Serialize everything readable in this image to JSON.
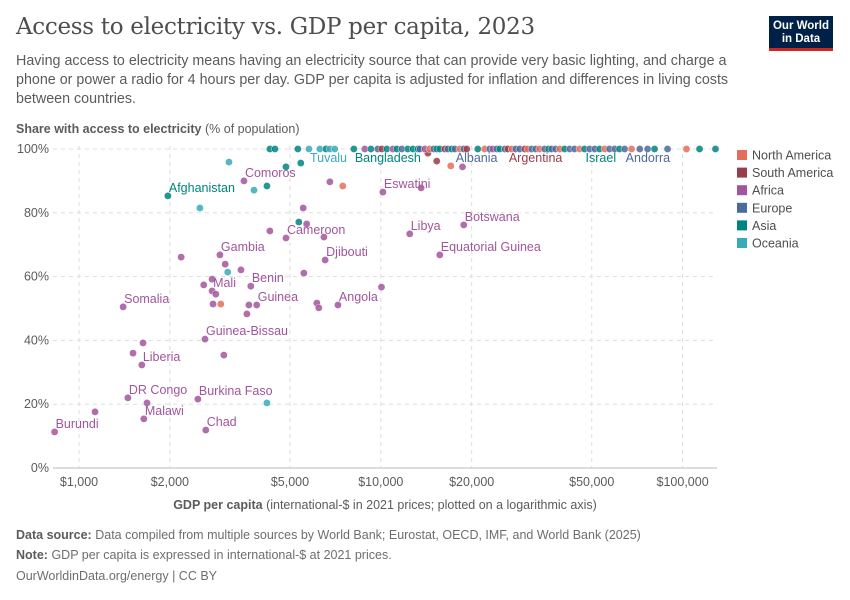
{
  "header": {
    "title": "Access to electricity vs. GDP per capita, 2023",
    "subtitle": "Having access to electricity means having an electricity source that can provide very basic lighting, and charge a phone or power a radio for 4 hours per day. GDP per capita is adjusted for inflation and differences in living costs between countries.",
    "logo_line1": "Our World",
    "logo_line2": "in Data"
  },
  "footer": {
    "source_label": "Data source:",
    "source": "Data compiled from multiple sources by World Bank; Eurostat, OECD, IMF, and World Bank (2025)",
    "note_label": "Note:",
    "note": "GDP per capita is expressed in international-$ at 2021 prices.",
    "credit": "OurWorldinData.org/energy | CC BY"
  },
  "chart_data": {
    "type": "scatter",
    "ylabel_bold": "Share with access to electricity",
    "ylabel_rest": "(% of population)",
    "xlabel_bold": "GDP per capita",
    "xlabel_rest": "(international-$ in 2021 prices; plotted on a logarithmic axis)",
    "xscale": "log",
    "xlim": [
      820,
      130000
    ],
    "ylim": [
      0,
      100
    ],
    "grid": true,
    "legend_placement": "right",
    "xticks": [
      {
        "v": 1000,
        "label": "$1,000"
      },
      {
        "v": 2000,
        "label": "$2,000"
      },
      {
        "v": 5000,
        "label": "$5,000"
      },
      {
        "v": 10000,
        "label": "$10,000"
      },
      {
        "v": 20000,
        "label": "$20,000"
      },
      {
        "v": 50000,
        "label": "$50,000"
      },
      {
        "v": 100000,
        "label": "$100,000"
      }
    ],
    "yticks": [
      {
        "v": 0,
        "label": "0%"
      },
      {
        "v": 20,
        "label": "20%"
      },
      {
        "v": 40,
        "label": "40%"
      },
      {
        "v": 60,
        "label": "60%"
      },
      {
        "v": 80,
        "label": "80%"
      },
      {
        "v": 100,
        "label": "100%"
      }
    ],
    "legend": [
      {
        "name": "North America",
        "color": "#e56e5a"
      },
      {
        "name": "South America",
        "color": "#9a3c4a"
      },
      {
        "name": "Africa",
        "color": "#a2559c"
      },
      {
        "name": "Europe",
        "color": "#4c6a9c"
      },
      {
        "name": "Asia",
        "color": "#00847e"
      },
      {
        "name": "Oceania",
        "color": "#38aaba"
      }
    ],
    "points": [
      {
        "x": 830,
        "y": 11.3,
        "r": "Africa",
        "label": "Burundi"
      },
      {
        "x": 1130,
        "y": 17.6,
        "r": "Africa"
      },
      {
        "x": 1452,
        "y": 22,
        "r": "Africa",
        "label": "DR Congo"
      },
      {
        "x": 1640,
        "y": 15.4,
        "r": "Africa",
        "label": "Malawi"
      },
      {
        "x": 1680,
        "y": 20.4,
        "r": "Africa"
      },
      {
        "x": 1615,
        "y": 32.3,
        "r": "Africa",
        "label": "Liberia"
      },
      {
        "x": 1510,
        "y": 36,
        "r": "Africa"
      },
      {
        "x": 1630,
        "y": 39.2,
        "r": "Africa"
      },
      {
        "x": 1400,
        "y": 50.5,
        "r": "Africa",
        "label": "Somalia"
      },
      {
        "x": 2615,
        "y": 40.4,
        "r": "Africa",
        "label": "Guinea-Bissau"
      },
      {
        "x": 3020,
        "y": 35.4,
        "r": "Africa"
      },
      {
        "x": 2477,
        "y": 21.6,
        "r": "Africa",
        "label": "Burkina Faso"
      },
      {
        "x": 2630,
        "y": 11.9,
        "r": "Africa",
        "label": "Chad"
      },
      {
        "x": 4195,
        "y": 20.4,
        "r": "Oceania"
      },
      {
        "x": 2780,
        "y": 51.4,
        "r": "Africa"
      },
      {
        "x": 2950,
        "y": 51.4,
        "r": "North America"
      },
      {
        "x": 3655,
        "y": 51.1,
        "r": "Africa"
      },
      {
        "x": 3880,
        "y": 51.1,
        "r": "Africa",
        "label": "Guinea"
      },
      {
        "x": 3600,
        "y": 48.3,
        "r": "Africa"
      },
      {
        "x": 6140,
        "y": 51.7,
        "r": "Africa"
      },
      {
        "x": 6230,
        "y": 50.2,
        "r": "Africa"
      },
      {
        "x": 7210,
        "y": 51.1,
        "r": "Africa",
        "label": "Angola"
      },
      {
        "x": 1970,
        "y": 85.3,
        "r": "Asia",
        "label": "Afghanistan"
      },
      {
        "x": 3140,
        "y": 95.9,
        "r": "Oceania"
      },
      {
        "x": 3520,
        "y": 90,
        "r": "Africa",
        "label": "Comoros"
      },
      {
        "x": 3800,
        "y": 87.1,
        "r": "Oceania"
      },
      {
        "x": 4195,
        "y": 88.4,
        "r": "Asia"
      },
      {
        "x": 4850,
        "y": 94.4,
        "r": "Asia"
      },
      {
        "x": 5430,
        "y": 95.6,
        "r": "Asia"
      },
      {
        "x": 2515,
        "y": 81.5,
        "r": "Oceania"
      },
      {
        "x": 5530,
        "y": 81.5,
        "r": "Africa"
      },
      {
        "x": 6780,
        "y": 89.7,
        "r": "Africa"
      },
      {
        "x": 7480,
        "y": 88.4,
        "r": "North America"
      },
      {
        "x": 10160,
        "y": 86.5,
        "r": "Africa",
        "label": "Eswatini"
      },
      {
        "x": 13600,
        "y": 87.8,
        "r": "Africa"
      },
      {
        "x": 5350,
        "y": 77.1,
        "r": "Asia"
      },
      {
        "x": 5680,
        "y": 76.5,
        "r": "Africa"
      },
      {
        "x": 4290,
        "y": 74.3,
        "r": "Africa"
      },
      {
        "x": 4850,
        "y": 72.1,
        "r": "Africa",
        "label": "Cameroon"
      },
      {
        "x": 6480,
        "y": 72.4,
        "r": "Africa"
      },
      {
        "x": 6540,
        "y": 65.2,
        "r": "Africa",
        "label": "Djibouti"
      },
      {
        "x": 2180,
        "y": 66.1,
        "r": "Africa"
      },
      {
        "x": 2930,
        "y": 66.8,
        "r": "Africa",
        "label": "Gambia"
      },
      {
        "x": 3050,
        "y": 63.9,
        "r": "Africa"
      },
      {
        "x": 3110,
        "y": 61.4,
        "r": "Oceania"
      },
      {
        "x": 3440,
        "y": 62.1,
        "r": "Africa"
      },
      {
        "x": 5560,
        "y": 61.1,
        "r": "Africa"
      },
      {
        "x": 2760,
        "y": 59.2,
        "r": "Africa"
      },
      {
        "x": 2590,
        "y": 57.4,
        "r": "Africa"
      },
      {
        "x": 2760,
        "y": 55.5,
        "r": "Africa",
        "label": "Mali"
      },
      {
        "x": 2840,
        "y": 54.5,
        "r": "Africa"
      },
      {
        "x": 3710,
        "y": 57,
        "r": "Africa",
        "label": "Benin"
      },
      {
        "x": 10050,
        "y": 56.7,
        "r": "Africa"
      },
      {
        "x": 12470,
        "y": 73.4,
        "r": "Africa",
        "label": "Libya"
      },
      {
        "x": 18830,
        "y": 76.2,
        "r": "Africa",
        "label": "Botswana"
      },
      {
        "x": 15680,
        "y": 66.8,
        "r": "Africa",
        "label": "Equatorial Guinea"
      },
      {
        "x": 18650,
        "y": 94.4,
        "r": "Africa"
      },
      {
        "x": 17050,
        "y": 94.7,
        "r": "North America"
      },
      {
        "x": 15320,
        "y": 96.2,
        "r": "South America"
      },
      {
        "x": 14320,
        "y": 98.7,
        "r": "South America"
      },
      {
        "x": 4290,
        "y": 100,
        "r": "Asia"
      },
      {
        "x": 4460,
        "y": 100,
        "r": "Asia"
      },
      {
        "x": 5310,
        "y": 100,
        "r": "Asia"
      },
      {
        "x": 5780,
        "y": 100,
        "r": "Oceania",
        "label": "Tuvalu"
      },
      {
        "x": 6280,
        "y": 100,
        "r": "Oceania"
      },
      {
        "x": 6580,
        "y": 100,
        "r": "Asia"
      },
      {
        "x": 6780,
        "y": 100,
        "r": "Oceania"
      },
      {
        "x": 7040,
        "y": 100,
        "r": "Oceania"
      },
      {
        "x": 8140,
        "y": 100,
        "r": "Asia",
        "label": "Bangladesh"
      },
      {
        "x": 8850,
        "y": 100,
        "r": "Africa"
      },
      {
        "x": 9270,
        "y": 100,
        "r": "Asia"
      },
      {
        "x": 9770,
        "y": 100,
        "r": "Europe"
      },
      {
        "x": 10070,
        "y": 100,
        "r": "South America"
      },
      {
        "x": 10470,
        "y": 100,
        "r": "Asia"
      },
      {
        "x": 10960,
        "y": 100,
        "r": "Africa"
      },
      {
        "x": 11300,
        "y": 100,
        "r": "Asia"
      },
      {
        "x": 11740,
        "y": 100,
        "r": "Europe"
      },
      {
        "x": 12280,
        "y": 100,
        "r": "Asia"
      },
      {
        "x": 12770,
        "y": 100,
        "r": "Asia"
      },
      {
        "x": 13270,
        "y": 100,
        "r": "Asia"
      },
      {
        "x": 13460,
        "y": 100,
        "r": "Europe"
      },
      {
        "x": 13990,
        "y": 100,
        "r": "Africa"
      },
      {
        "x": 14520,
        "y": 100,
        "r": "North America"
      },
      {
        "x": 14970,
        "y": 100,
        "r": "Europe"
      },
      {
        "x": 15320,
        "y": 100,
        "r": "Asia"
      },
      {
        "x": 15680,
        "y": 100,
        "r": "Asia"
      },
      {
        "x": 16290,
        "y": 100,
        "r": "South America"
      },
      {
        "x": 16670,
        "y": 100,
        "r": "Europe"
      },
      {
        "x": 17180,
        "y": 100,
        "r": "Asia"
      },
      {
        "x": 17580,
        "y": 100,
        "r": "Europe",
        "label": "Albania"
      },
      {
        "x": 18280,
        "y": 100,
        "r": "North America"
      },
      {
        "x": 18830,
        "y": 100,
        "r": "Europe"
      },
      {
        "x": 19270,
        "y": 100,
        "r": "South America"
      },
      {
        "x": 20960,
        "y": 100,
        "r": "Asia"
      },
      {
        "x": 22090,
        "y": 100,
        "r": "North America"
      },
      {
        "x": 22960,
        "y": 100,
        "r": "Europe"
      },
      {
        "x": 23500,
        "y": 100,
        "r": "Africa"
      },
      {
        "x": 24210,
        "y": 100,
        "r": "Europe"
      },
      {
        "x": 24770,
        "y": 100,
        "r": "Asia"
      },
      {
        "x": 25760,
        "y": 100,
        "r": "Europe"
      },
      {
        "x": 26360,
        "y": 100,
        "r": "South America",
        "label": "Argentina"
      },
      {
        "x": 27160,
        "y": 100,
        "r": "North America"
      },
      {
        "x": 27990,
        "y": 100,
        "r": "Europe"
      },
      {
        "x": 28840,
        "y": 100,
        "r": "Europe"
      },
      {
        "x": 29990,
        "y": 100,
        "r": "South America"
      },
      {
        "x": 30690,
        "y": 100,
        "r": "North America"
      },
      {
        "x": 31620,
        "y": 100,
        "r": "Europe"
      },
      {
        "x": 32580,
        "y": 100,
        "r": "Europe"
      },
      {
        "x": 33570,
        "y": 100,
        "r": "North America"
      },
      {
        "x": 34900,
        "y": 100,
        "r": "Europe"
      },
      {
        "x": 35970,
        "y": 100,
        "r": "Asia"
      },
      {
        "x": 36810,
        "y": 100,
        "r": "Europe"
      },
      {
        "x": 37930,
        "y": 100,
        "r": "Europe"
      },
      {
        "x": 39170,
        "y": 100,
        "r": "North America"
      },
      {
        "x": 40640,
        "y": 100,
        "r": "Asia"
      },
      {
        "x": 42270,
        "y": 100,
        "r": "Europe"
      },
      {
        "x": 43850,
        "y": 100,
        "r": "Europe"
      },
      {
        "x": 45600,
        "y": 100,
        "r": "North America"
      },
      {
        "x": 47320,
        "y": 100,
        "r": "Asia",
        "label": "Israel"
      },
      {
        "x": 49200,
        "y": 100,
        "r": "Europe"
      },
      {
        "x": 51170,
        "y": 100,
        "r": "Europe"
      },
      {
        "x": 53090,
        "y": 100,
        "r": "Asia"
      },
      {
        "x": 55210,
        "y": 100,
        "r": "North America"
      },
      {
        "x": 57280,
        "y": 100,
        "r": "Europe"
      },
      {
        "x": 59570,
        "y": 100,
        "r": "Europe"
      },
      {
        "x": 61800,
        "y": 100,
        "r": "Asia"
      },
      {
        "x": 64270,
        "y": 100,
        "r": "Europe",
        "label": "Andorra"
      },
      {
        "x": 67760,
        "y": 100,
        "r": "North America"
      },
      {
        "x": 72110,
        "y": 100,
        "r": "Europe"
      },
      {
        "x": 76560,
        "y": 100,
        "r": "Europe"
      },
      {
        "x": 80720,
        "y": 100,
        "r": "Asia"
      },
      {
        "x": 89130,
        "y": 100,
        "r": "Europe"
      },
      {
        "x": 103000,
        "y": 100,
        "r": "North America"
      },
      {
        "x": 113800,
        "y": 100,
        "r": "Asia"
      },
      {
        "x": 128500,
        "y": 100,
        "r": "Asia"
      }
    ]
  }
}
